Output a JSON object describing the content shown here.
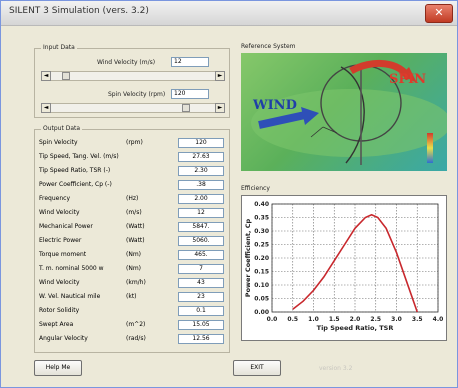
{
  "window": {
    "title": "SILENT 3 Simulation (vers. 3.2)",
    "close_glyph": "✕"
  },
  "input": {
    "label": "Input Data",
    "wind_velocity_label": "Wind Velocity (m/s)",
    "wind_velocity_value": "12",
    "spin_velocity_label": "Spin Velocity (rpm)",
    "spin_velocity_value": "120",
    "scroll_left": "◄",
    "scroll_right": "►"
  },
  "output": {
    "label": "Output Data",
    "rows": [
      {
        "name": "Spin Velocity",
        "unit": "(rpm)",
        "value": "120"
      },
      {
        "name": "Tip Speed, Tang. Vel. (m/s)",
        "unit": "",
        "value": "27.63"
      },
      {
        "name": "Tip Speed Ratio, TSR (-)",
        "unit": "",
        "value": "2.30"
      },
      {
        "name": "Power Coefficient, Cp (-)",
        "unit": "",
        "value": ".38"
      },
      {
        "name": "Frequency",
        "unit": "(Hz)",
        "value": "2.00"
      },
      {
        "name": "Wind Velocity",
        "unit": "(m/s)",
        "value": "12"
      },
      {
        "name": "Mechanical Power",
        "unit": "(Watt)",
        "value": "5847."
      },
      {
        "name": "Electric Power",
        "unit": "(Watt)",
        "value": "5060."
      },
      {
        "name": "Torque moment",
        "unit": "(Nm)",
        "value": "465."
      },
      {
        "name": "T. m. nominal 5000 w",
        "unit": "(Nm)",
        "value": "7"
      },
      {
        "name": "Wind Velocity",
        "unit": "(km/h)",
        "value": "43"
      },
      {
        "name": "W. Vel. Nautical mile",
        "unit": "(kt)",
        "value": "23"
      },
      {
        "name": "Rotor Solidity",
        "unit": "",
        "value": "0.1"
      },
      {
        "name": "Swept Area",
        "unit": "(m^2)",
        "value": "15.05"
      },
      {
        "name": "Angular Velocity",
        "unit": "(rad/s)",
        "value": "12.56"
      }
    ]
  },
  "reference": {
    "label": "Reference System",
    "wind_text": "WIND",
    "spin_text": "SPIN"
  },
  "efficiency": {
    "label": "Efficiency",
    "chart_data": {
      "type": "line",
      "title": "",
      "xlabel": "Tip Speed Ratio, TSR",
      "ylabel": "Power Coefficient, Cp",
      "x_ticks": [
        "0.0",
        "0.5",
        "1.0",
        "1.5",
        "2.0",
        "2.5",
        "3.0",
        "3.5",
        "4.0"
      ],
      "y_ticks": [
        "0.00",
        "0.05",
        "0.10",
        "0.15",
        "0.20",
        "0.25",
        "0.30",
        "0.35",
        "0.40"
      ],
      "xlim": [
        0,
        4
      ],
      "ylim": [
        0,
        0.4
      ],
      "grid": true,
      "series": [
        {
          "x": [
            0.5,
            0.75,
            1.0,
            1.25,
            1.5,
            1.75,
            2.0,
            2.25,
            2.4,
            2.55,
            2.75,
            3.0,
            3.25,
            3.5
          ],
          "values": [
            0.01,
            0.04,
            0.08,
            0.13,
            0.19,
            0.25,
            0.31,
            0.35,
            0.36,
            0.35,
            0.31,
            0.22,
            0.11,
            0.0
          ],
          "color": "#c8282d"
        }
      ]
    }
  },
  "buttons": {
    "help": "Help Me",
    "exit": "EXIT"
  },
  "footer": {
    "version": "version 3.2"
  }
}
